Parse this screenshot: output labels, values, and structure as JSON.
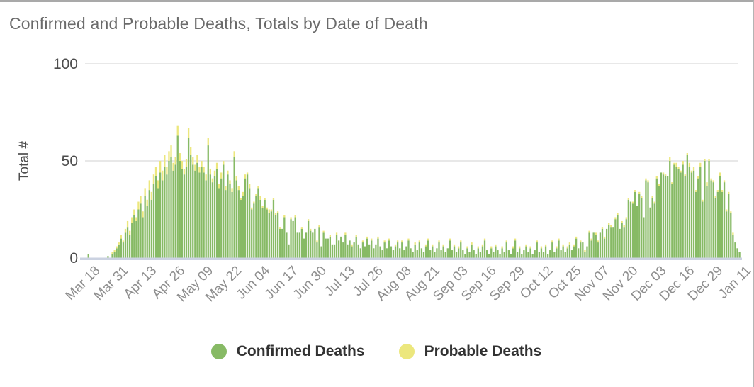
{
  "title": "Confirmed and Probable Deaths, Totals by Date of Death",
  "colors": {
    "confirmed": "#87BA65",
    "probable": "#ECE77D",
    "gridline": "#e8e8e8",
    "baseline": "#CBD2E1",
    "title_text": "#6a6a6a",
    "y_tick_text": "#4d4d4d",
    "x_tick_text": "#8e8e8e",
    "legend_text": "#323232",
    "top_border": "#a9a9a9",
    "right_border": "#b4b4b4"
  },
  "legend": {
    "items": [
      {
        "label": "Confirmed Deaths",
        "color_key": "confirmed"
      },
      {
        "label": "Probable Deaths",
        "color_key": "probable"
      }
    ]
  },
  "chart_data": {
    "type": "bar",
    "stacked": true,
    "title": "Confirmed and Probable Deaths, Totals by Date of Death",
    "xlabel": "",
    "ylabel": "Total #",
    "ylim": [
      0,
      100
    ],
    "yticks": [
      0,
      50,
      100
    ],
    "grid": "horizontal",
    "legend_position": "bottom",
    "x_start_label": "Mar 18",
    "x_end_label": "Jan 11",
    "x_tick_interval_days": 13,
    "x_tick_labels": [
      "Mar 18",
      "Mar 31",
      "Apr 13",
      "Apr 26",
      "May 09",
      "May 22",
      "Jun 04",
      "Jun 17",
      "Jun 30",
      "Jul 13",
      "Jul 26",
      "Aug 08",
      "Aug 21",
      "Sep 03",
      "Sep 16",
      "Sep 29",
      "Oct 12",
      "Oct 25",
      "Nov 07",
      "Nov 20",
      "Dec 03",
      "Dec 16",
      "Dec 29",
      "Jan 11"
    ],
    "series": [
      {
        "name": "Confirmed Deaths",
        "color": "#87BA65",
        "values": [
          2,
          0,
          0,
          0,
          0,
          0,
          0,
          0,
          0,
          1,
          0,
          2,
          3,
          5,
          7,
          10,
          8,
          13,
          16,
          12,
          18,
          22,
          19,
          25,
          28,
          21,
          32,
          27,
          35,
          30,
          38,
          42,
          36,
          44,
          40,
          47,
          43,
          50,
          52,
          45,
          48,
          63,
          50,
          46,
          43,
          47,
          62,
          53,
          48,
          45,
          49,
          44,
          47,
          44,
          40,
          58,
          43,
          39,
          42,
          46,
          36,
          41,
          48,
          35,
          43,
          38,
          34,
          52,
          40,
          35,
          30,
          32,
          41,
          43,
          36,
          25,
          28,
          32,
          36,
          30,
          26,
          30,
          25,
          23,
          24,
          30,
          22,
          23,
          15,
          15,
          21,
          13,
          7,
          20,
          19,
          21,
          13,
          13,
          15,
          10,
          13,
          19,
          14,
          13,
          15,
          8,
          16,
          6,
          13,
          10,
          10,
          11,
          7,
          7,
          12,
          9,
          11,
          8,
          12,
          7,
          9,
          6,
          8,
          11,
          7,
          5,
          8,
          6,
          10,
          7,
          9,
          5,
          7,
          10,
          6,
          4,
          8,
          5,
          9,
          6,
          4,
          6,
          8,
          5,
          8,
          4,
          6,
          9,
          5,
          3,
          7,
          4,
          8,
          5,
          3,
          6,
          9,
          4,
          6,
          3,
          5,
          8,
          4,
          6,
          3,
          5,
          9,
          4,
          6,
          3,
          5,
          8,
          4,
          2,
          5,
          3,
          7,
          4,
          2,
          5,
          3,
          6,
          9,
          4,
          2,
          5,
          3,
          6,
          4,
          2,
          5,
          3,
          8,
          4,
          2,
          5,
          9,
          3,
          5,
          2,
          4,
          6,
          3,
          5,
          2,
          4,
          8,
          3,
          5,
          3,
          6,
          2,
          4,
          8,
          3,
          5,
          9,
          4,
          6,
          3,
          5,
          7,
          4,
          6,
          10,
          5,
          8,
          8,
          3,
          6,
          13,
          9,
          13,
          12,
          8,
          13,
          15,
          10,
          15,
          17,
          16,
          16,
          20,
          22,
          15,
          18,
          16,
          20,
          30,
          29,
          28,
          34,
          27,
          33,
          31,
          21,
          40,
          39,
          26,
          31,
          28,
          41,
          37,
          44,
          43,
          42,
          42,
          50,
          38,
          48,
          47,
          46,
          44,
          48,
          42,
          53,
          47,
          44,
          45,
          34,
          41,
          47,
          29,
          50,
          37,
          50,
          40,
          39,
          31,
          34,
          42,
          34,
          39,
          24,
          33,
          23,
          12,
          8,
          5,
          3
        ]
      },
      {
        "name": "Probable Deaths",
        "color": "#ECE77D",
        "values": [
          0,
          0,
          0,
          0,
          0,
          0,
          0,
          0,
          0,
          0,
          0,
          1,
          1,
          1,
          1,
          2,
          1,
          2,
          3,
          2,
          3,
          3,
          2,
          4,
          4,
          3,
          4,
          3,
          5,
          4,
          5,
          5,
          4,
          6,
          5,
          6,
          4,
          5,
          6,
          4,
          4,
          5,
          4,
          4,
          3,
          4,
          5,
          4,
          4,
          3,
          4,
          3,
          3,
          3,
          3,
          4,
          3,
          2,
          3,
          3,
          2,
          3,
          2,
          2,
          2,
          2,
          2,
          3,
          2,
          2,
          1,
          2,
          2,
          1,
          2,
          1,
          1,
          1,
          1,
          2,
          1,
          1,
          1,
          2,
          1,
          1,
          1,
          1,
          1,
          0,
          1,
          0,
          0,
          1,
          0,
          1,
          0,
          0,
          1,
          0,
          0,
          1,
          1,
          0,
          0,
          1,
          1,
          0,
          1,
          0,
          0,
          1,
          0,
          0,
          1,
          0,
          0,
          0,
          1,
          0,
          0,
          1,
          0,
          1,
          0,
          0,
          1,
          0,
          1,
          0,
          1,
          0,
          0,
          1,
          0,
          0,
          1,
          0,
          1,
          0,
          0,
          1,
          1,
          0,
          1,
          0,
          0,
          1,
          0,
          0,
          1,
          0,
          1,
          0,
          0,
          1,
          1,
          0,
          1,
          0,
          0,
          1,
          0,
          1,
          0,
          0,
          1,
          0,
          1,
          0,
          1,
          1,
          0,
          0,
          1,
          0,
          1,
          0,
          0,
          1,
          0,
          1,
          1,
          0,
          0,
          1,
          0,
          1,
          0,
          0,
          1,
          0,
          1,
          0,
          0,
          1,
          1,
          0,
          1,
          0,
          0,
          1,
          0,
          1,
          0,
          0,
          1,
          0,
          1,
          0,
          1,
          0,
          0,
          1,
          0,
          1,
          1,
          0,
          1,
          0,
          1,
          1,
          0,
          1,
          1,
          0,
          1,
          0,
          1,
          0,
          1,
          1,
          0,
          1,
          1,
          0,
          1,
          1,
          0,
          1,
          1,
          0,
          1,
          1,
          0,
          1,
          1,
          1,
          1,
          0,
          1,
          1,
          0,
          1,
          1,
          0,
          1,
          1,
          0,
          1,
          1,
          1,
          1,
          0,
          1,
          1,
          0,
          2,
          1,
          1,
          2,
          1,
          1,
          2,
          1,
          1,
          2,
          1,
          2,
          1,
          1,
          2,
          1,
          1,
          2,
          1,
          1,
          1,
          1,
          1,
          2,
          1,
          1,
          1,
          1,
          1,
          1,
          0,
          0,
          0
        ]
      }
    ]
  }
}
